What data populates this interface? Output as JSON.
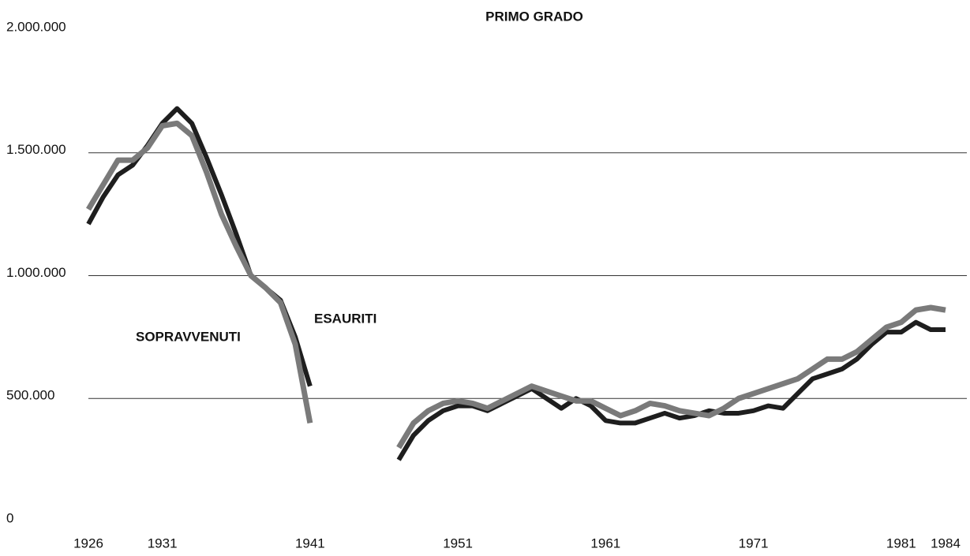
{
  "chart_data": {
    "type": "line",
    "title": "PRIMO GRADO",
    "x": [
      1926,
      1927,
      1928,
      1929,
      1930,
      1931,
      1932,
      1933,
      1934,
      1935,
      1936,
      1937,
      1938,
      1939,
      1940,
      1941,
      1942,
      1943,
      1944,
      1945,
      1946,
      1947,
      1948,
      1949,
      1950,
      1951,
      1952,
      1953,
      1954,
      1955,
      1956,
      1957,
      1958,
      1959,
      1960,
      1961,
      1962,
      1963,
      1964,
      1965,
      1966,
      1967,
      1968,
      1969,
      1970,
      1971,
      1972,
      1973,
      1974,
      1975,
      1976,
      1977,
      1978,
      1979,
      1980,
      1981,
      1982,
      1983,
      1984
    ],
    "series": [
      {
        "name": "ESAURITI",
        "color": "#1e1e1e",
        "values": [
          1210000,
          1320000,
          1410000,
          1450000,
          1530000,
          1620000,
          1680000,
          1620000,
          1480000,
          1330000,
          1170000,
          1000000,
          950000,
          900000,
          750000,
          550000,
          null,
          null,
          null,
          null,
          null,
          250000,
          350000,
          410000,
          450000,
          470000,
          470000,
          450000,
          480000,
          510000,
          540000,
          500000,
          460000,
          500000,
          470000,
          410000,
          400000,
          400000,
          420000,
          440000,
          420000,
          430000,
          450000,
          440000,
          440000,
          450000,
          470000,
          460000,
          520000,
          580000,
          600000,
          620000,
          660000,
          720000,
          770000,
          770000,
          810000,
          780000,
          780000
        ]
      },
      {
        "name": "SOPRAVVENUTI",
        "color": "#7a7a7a",
        "values": [
          1270000,
          1370000,
          1470000,
          1470000,
          1520000,
          1610000,
          1620000,
          1570000,
          1420000,
          1250000,
          1120000,
          1000000,
          950000,
          890000,
          720000,
          400000,
          null,
          null,
          null,
          null,
          null,
          300000,
          400000,
          450000,
          480000,
          490000,
          480000,
          460000,
          490000,
          520000,
          550000,
          530000,
          510000,
          490000,
          490000,
          460000,
          430000,
          450000,
          480000,
          470000,
          450000,
          440000,
          430000,
          460000,
          500000,
          520000,
          540000,
          560000,
          580000,
          620000,
          660000,
          660000,
          690000,
          740000,
          790000,
          810000,
          860000,
          870000,
          860000
        ]
      }
    ],
    "xlim": [
      1926,
      1984
    ],
    "xticks": [
      1926,
      1931,
      1941,
      1951,
      1961,
      1971,
      1981,
      1984
    ],
    "ylim": [
      0,
      2000000
    ],
    "yticks": [
      0,
      {
        "value": 500000,
        "label": "500.000"
      },
      {
        "value": 1000000,
        "label": "1.000.000"
      },
      {
        "value": 1500000,
        "label": "1.500.000"
      },
      {
        "value": 2000000,
        "label": "2.000.000"
      }
    ],
    "grid": true
  }
}
